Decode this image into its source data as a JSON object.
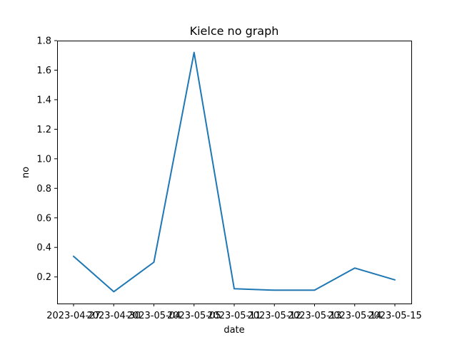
{
  "chart_data": {
    "type": "line",
    "title": "Kielce no graph",
    "xlabel": "date",
    "ylabel": "no",
    "x": [
      "2023-04-27",
      "2023-04-30",
      "2023-05-04",
      "2023-05-05",
      "2023-05-11",
      "2023-05-12",
      "2023-05-13",
      "2023-05-14",
      "2023-05-15"
    ],
    "series": [
      {
        "values": [
          0.34,
          0.1,
          0.3,
          1.72,
          0.12,
          0.11,
          0.11,
          0.26,
          0.18
        ],
        "color": "#1f77b4"
      }
    ],
    "yticks": [
      "0.2",
      "0.4",
      "0.6",
      "0.8",
      "1.0",
      "1.2",
      "1.4",
      "1.6",
      "1.8"
    ],
    "ylim": [
      0.02,
      1.8
    ],
    "grid": false,
    "legend": "none"
  }
}
